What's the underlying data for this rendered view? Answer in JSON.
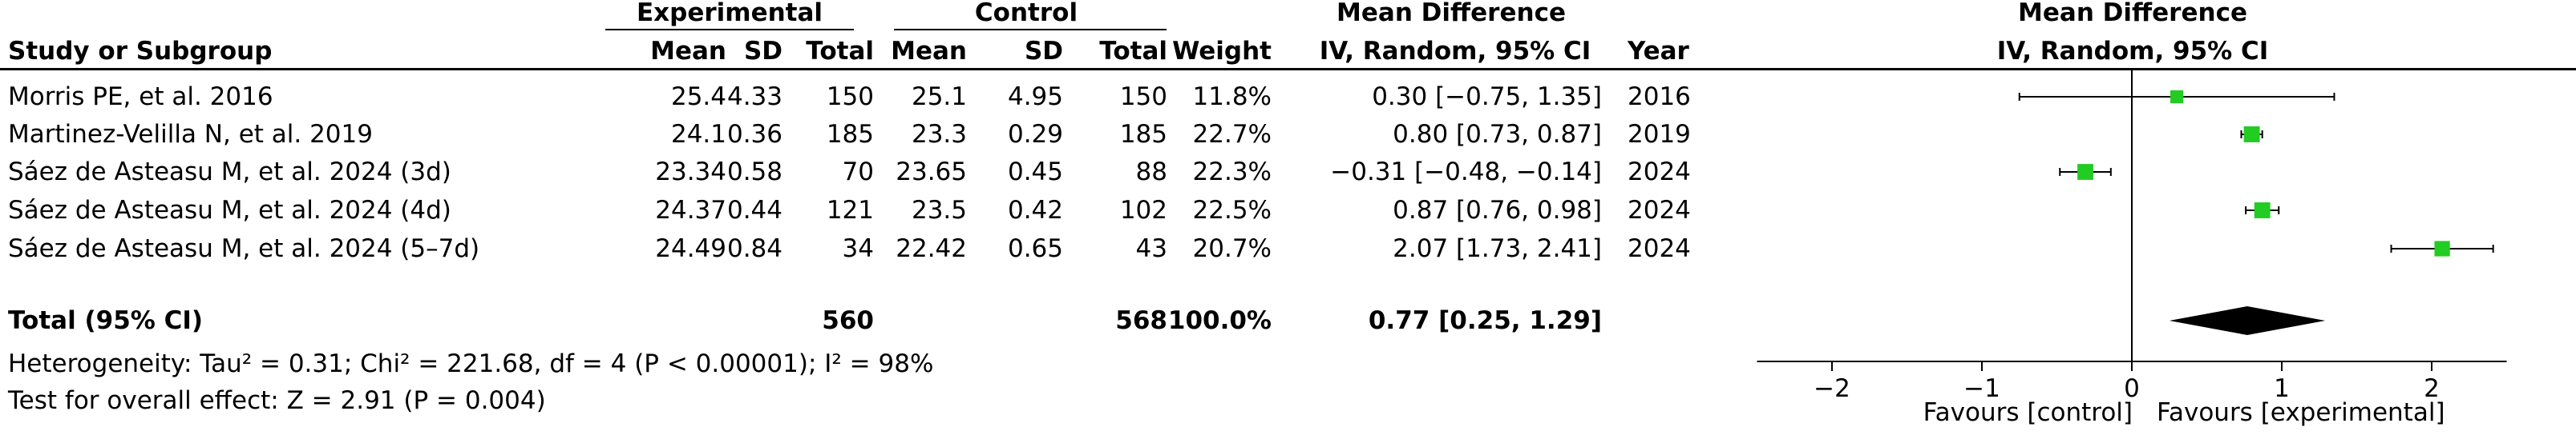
{
  "headers": {
    "group_experimental": "Experimental",
    "group_control": "Control",
    "mean_difference": "Mean Difference",
    "study_or_subgroup": "Study or Subgroup",
    "mean": "Mean",
    "sd": "SD",
    "total": "Total",
    "weight": "Weight",
    "method": "IV, Random, 95% CI",
    "year": "Year"
  },
  "studies": [
    {
      "name": "Morris PE, et al. 2016",
      "e_mean": "25.4",
      "e_sd": "4.33",
      "e_total": "150",
      "c_mean": "25.1",
      "c_sd": "4.95",
      "c_total": "150",
      "weight": "11.8%",
      "ci_text": "0.30 [−0.75, 1.35]",
      "year": "2016"
    },
    {
      "name": "Martinez-Velilla N, et al. 2019",
      "e_mean": "24.1",
      "e_sd": "0.36",
      "e_total": "185",
      "c_mean": "23.3",
      "c_sd": "0.29",
      "c_total": "185",
      "weight": "22.7%",
      "ci_text": "0.80 [0.73, 0.87]",
      "year": "2019"
    },
    {
      "name": "Sáez de Asteasu M, et al. 2024 (3d)",
      "e_mean": "23.34",
      "e_sd": "0.58",
      "e_total": "70",
      "c_mean": "23.65",
      "c_sd": "0.45",
      "c_total": "88",
      "weight": "22.3%",
      "ci_text": "−0.31 [−0.48, −0.14]",
      "year": "2024"
    },
    {
      "name": "Sáez de Asteasu M, et al. 2024 (4d)",
      "e_mean": "24.37",
      "e_sd": "0.44",
      "e_total": "121",
      "c_mean": "23.5",
      "c_sd": "0.42",
      "c_total": "102",
      "weight": "22.5%",
      "ci_text": "0.87 [0.76, 0.98]",
      "year": "2024"
    },
    {
      "name": "Sáez de Asteasu M, et al. 2024 (5–7d)",
      "e_mean": "24.49",
      "e_sd": "0.84",
      "e_total": "34",
      "c_mean": "22.42",
      "c_sd": "0.65",
      "c_total": "43",
      "weight": "20.7%",
      "ci_text": "2.07 [1.73, 2.41]",
      "year": "2024"
    }
  ],
  "total": {
    "label": "Total (95% CI)",
    "e_total": "560",
    "c_total": "568",
    "weight": "100.0%",
    "ci_text": "0.77 [0.25, 1.29]"
  },
  "heterogeneity": "Heterogeneity: Tau² = 0.31; Chi² = 221.68, df = 4 (P < 0.00001); I² = 98%",
  "overall_effect": "Test for overall effect: Z = 2.91 (P = 0.004)",
  "plot_header_line1": "Mean Difference",
  "plot_header_line2": "IV, Random, 95% CI",
  "favours_left": "Favours [control]",
  "favours_right": "Favours [experimental]",
  "colors": {
    "marker": "#22cc22",
    "diamond": "#000000",
    "line": "#000000"
  },
  "chart_data": {
    "type": "forest",
    "xlim": [
      -2.5,
      2.5
    ],
    "ticks": [
      -2,
      -1,
      0,
      1,
      2
    ],
    "tick_labels": [
      "−2",
      "−1",
      "0",
      "1",
      "2"
    ],
    "studies": [
      {
        "name": "Morris PE, et al. 2016",
        "md": 0.3,
        "lo": -0.75,
        "hi": 1.35,
        "weight": 11.8
      },
      {
        "name": "Martinez-Velilla N, et al. 2019",
        "md": 0.8,
        "lo": 0.73,
        "hi": 0.87,
        "weight": 22.7
      },
      {
        "name": "Sáez de Asteasu M, et al. 2024 (3d)",
        "md": -0.31,
        "lo": -0.48,
        "hi": -0.14,
        "weight": 22.3
      },
      {
        "name": "Sáez de Asteasu M, et al. 2024 (4d)",
        "md": 0.87,
        "lo": 0.76,
        "hi": 0.98,
        "weight": 22.5
      },
      {
        "name": "Sáez de Asteasu M, et al. 2024 (5–7d)",
        "md": 2.07,
        "lo": 1.73,
        "hi": 2.41,
        "weight": 20.7
      }
    ],
    "pooled": {
      "md": 0.77,
      "lo": 0.25,
      "hi": 1.29
    }
  }
}
